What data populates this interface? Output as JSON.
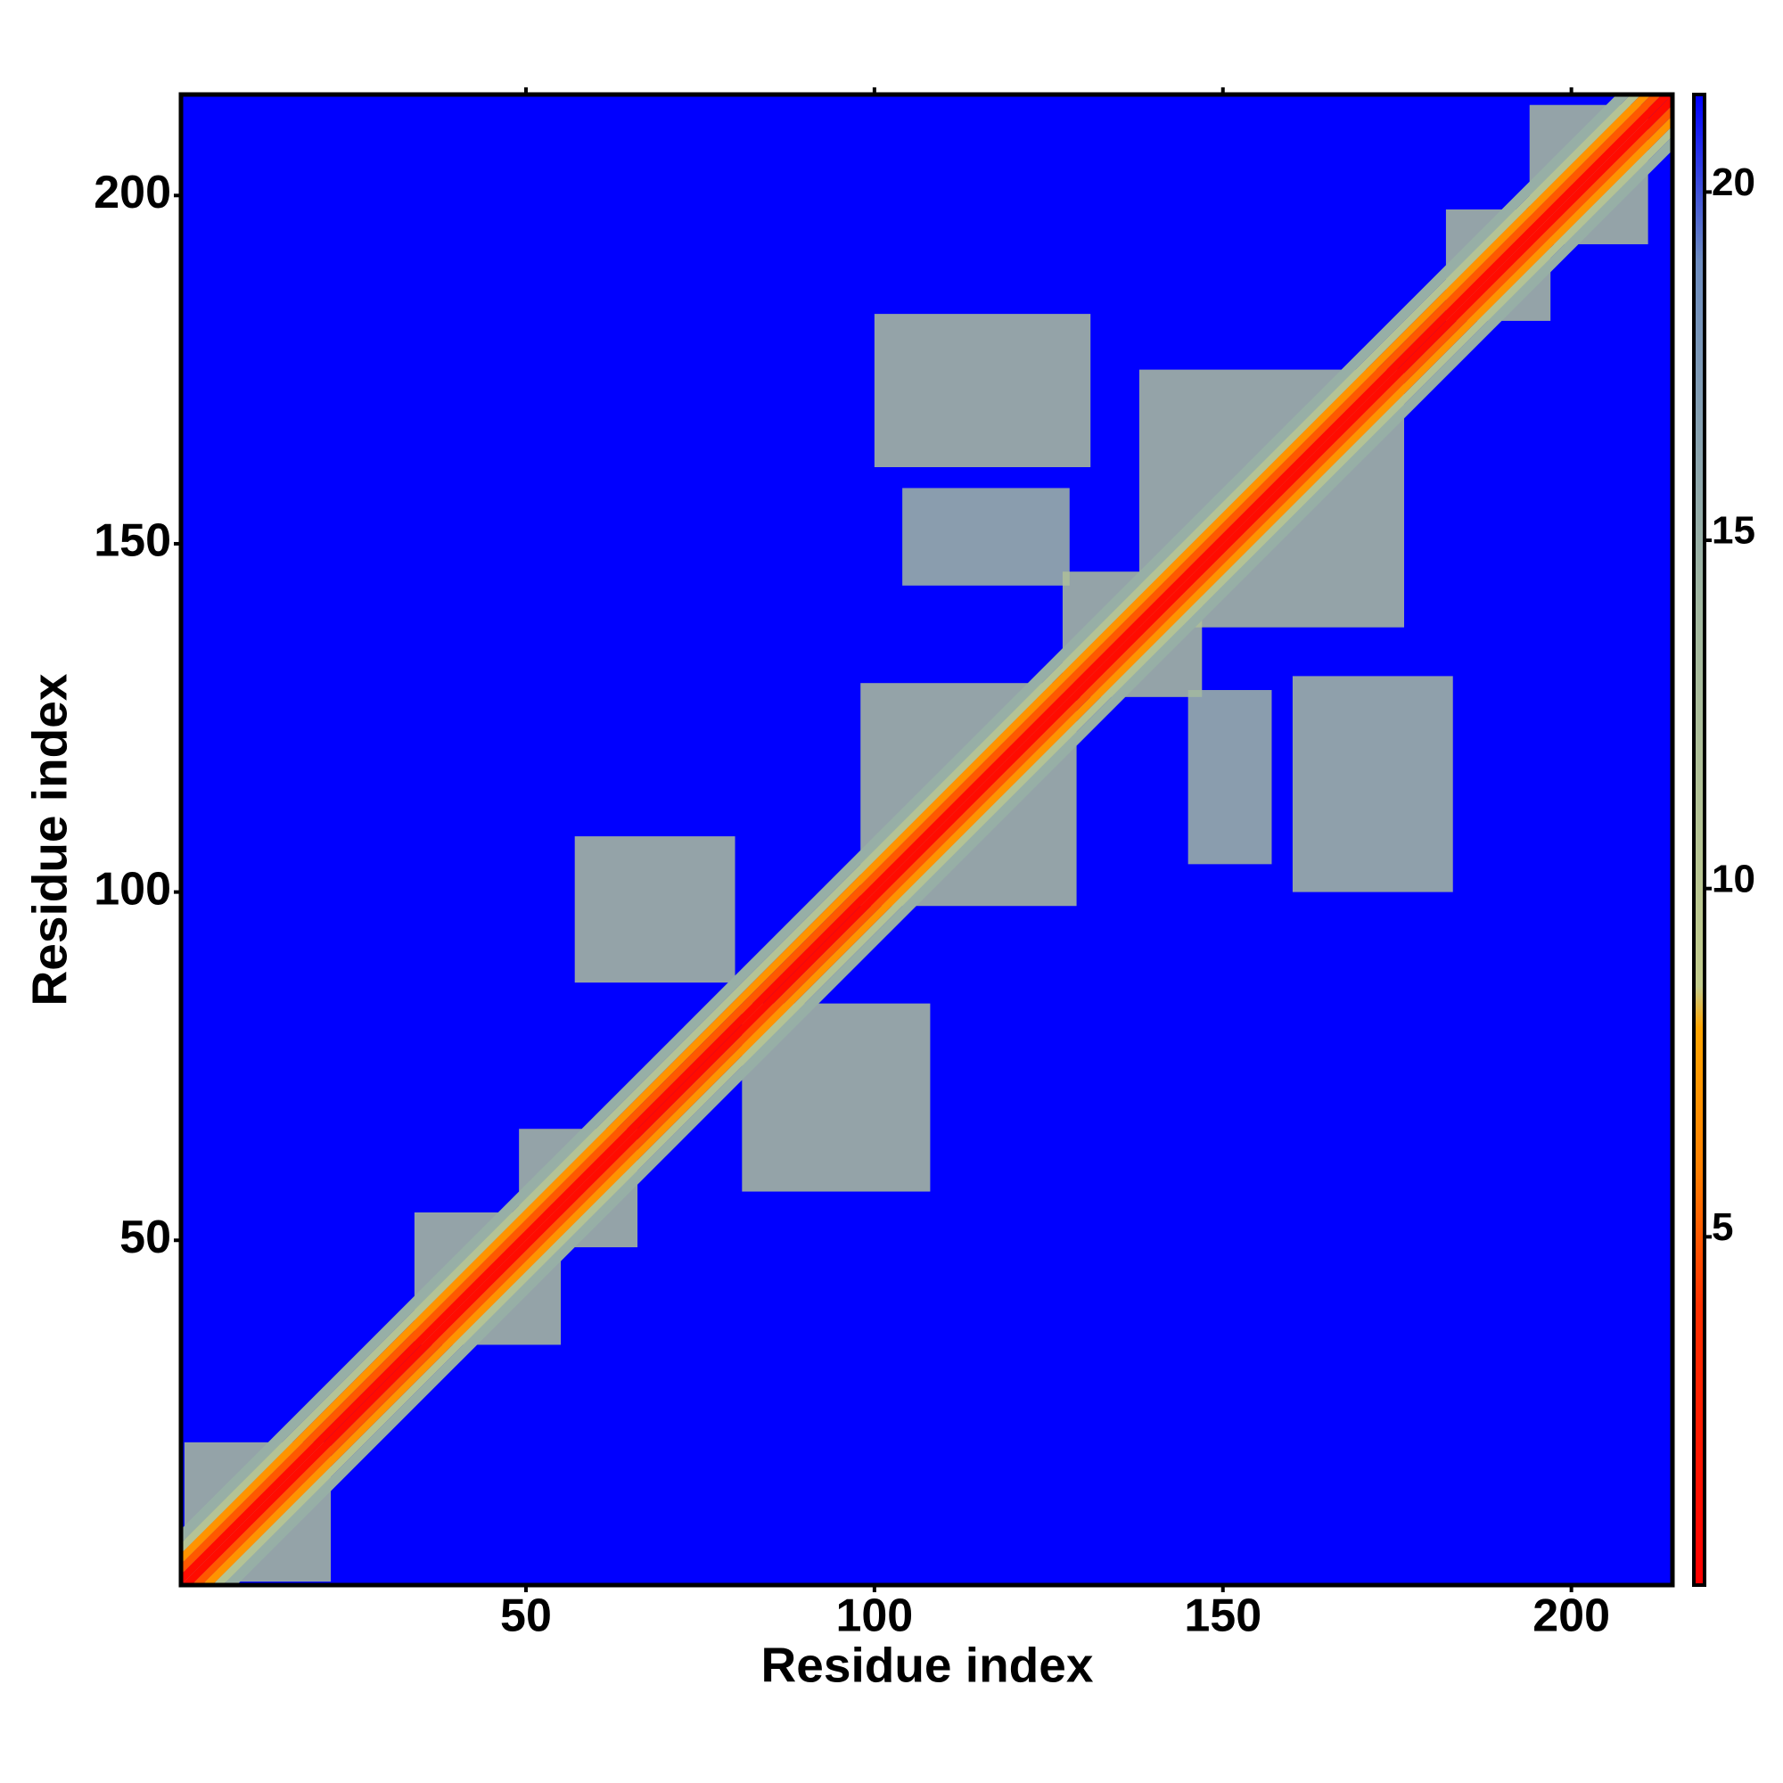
{
  "chart_data": {
    "type": "contact_map",
    "x_label": "Residue index",
    "y_label": "Residue index",
    "xlim": [
      0.5,
      214.5
    ],
    "ylim": [
      0.5,
      214.5
    ],
    "xticks": [
      50,
      100,
      150,
      200
    ],
    "yticks": [
      50,
      100,
      150,
      200
    ],
    "clim": [
      0,
      21.4
    ],
    "cticks": [
      5,
      10,
      15,
      20
    ],
    "colorscale": [
      [
        0,
        "#ff0000"
      ],
      [
        4,
        "#ff3000"
      ],
      [
        6,
        "#ff8000"
      ],
      [
        8,
        "#ffa500"
      ],
      [
        8.6,
        "#c2cc8c"
      ],
      [
        14,
        "#a2b8a0"
      ],
      [
        19,
        "#6d8cc0"
      ],
      [
        21.4,
        "#0000ff"
      ]
    ],
    "background_value": 21.4,
    "diagonal": {
      "offset_edges": [
        0,
        1.5,
        3,
        4.5,
        6,
        8
      ],
      "values": [
        1,
        5,
        7,
        11,
        15
      ]
    },
    "patches": [
      {
        "x": [
          100,
          131
        ],
        "y": [
          161,
          183
        ],
        "value": 12
      },
      {
        "x": [
          104,
          128
        ],
        "y": [
          144,
          158
        ],
        "value": 14
      },
      {
        "x": [
          138,
          176
        ],
        "y": [
          138,
          175
        ],
        "value": 12
      },
      {
        "x": [
          127,
          147
        ],
        "y": [
          128,
          146
        ],
        "value": 12
      },
      {
        "x": [
          145,
          157
        ],
        "y": [
          104,
          129
        ],
        "value": 14
      },
      {
        "x": [
          160,
          183
        ],
        "y": [
          100,
          131
        ],
        "value": 13
      },
      {
        "x": [
          98,
          129
        ],
        "y": [
          98,
          130
        ],
        "value": 12
      },
      {
        "x": [
          57,
          80
        ],
        "y": [
          87,
          108
        ],
        "value": 12
      },
      {
        "x": [
          81,
          108
        ],
        "y": [
          57,
          84
        ],
        "value": 12
      },
      {
        "x": [
          1,
          22
        ],
        "y": [
          1,
          21
        ],
        "value": 12
      },
      {
        "x": [
          34,
          55
        ],
        "y": [
          35,
          54
        ],
        "value": 12
      },
      {
        "x": [
          49,
          66
        ],
        "y": [
          49,
          66
        ],
        "value": 12
      },
      {
        "x": [
          182,
          197
        ],
        "y": [
          182,
          198
        ],
        "value": 12
      },
      {
        "x": [
          194,
          211
        ],
        "y": [
          193,
          213
        ],
        "value": 12
      }
    ]
  }
}
